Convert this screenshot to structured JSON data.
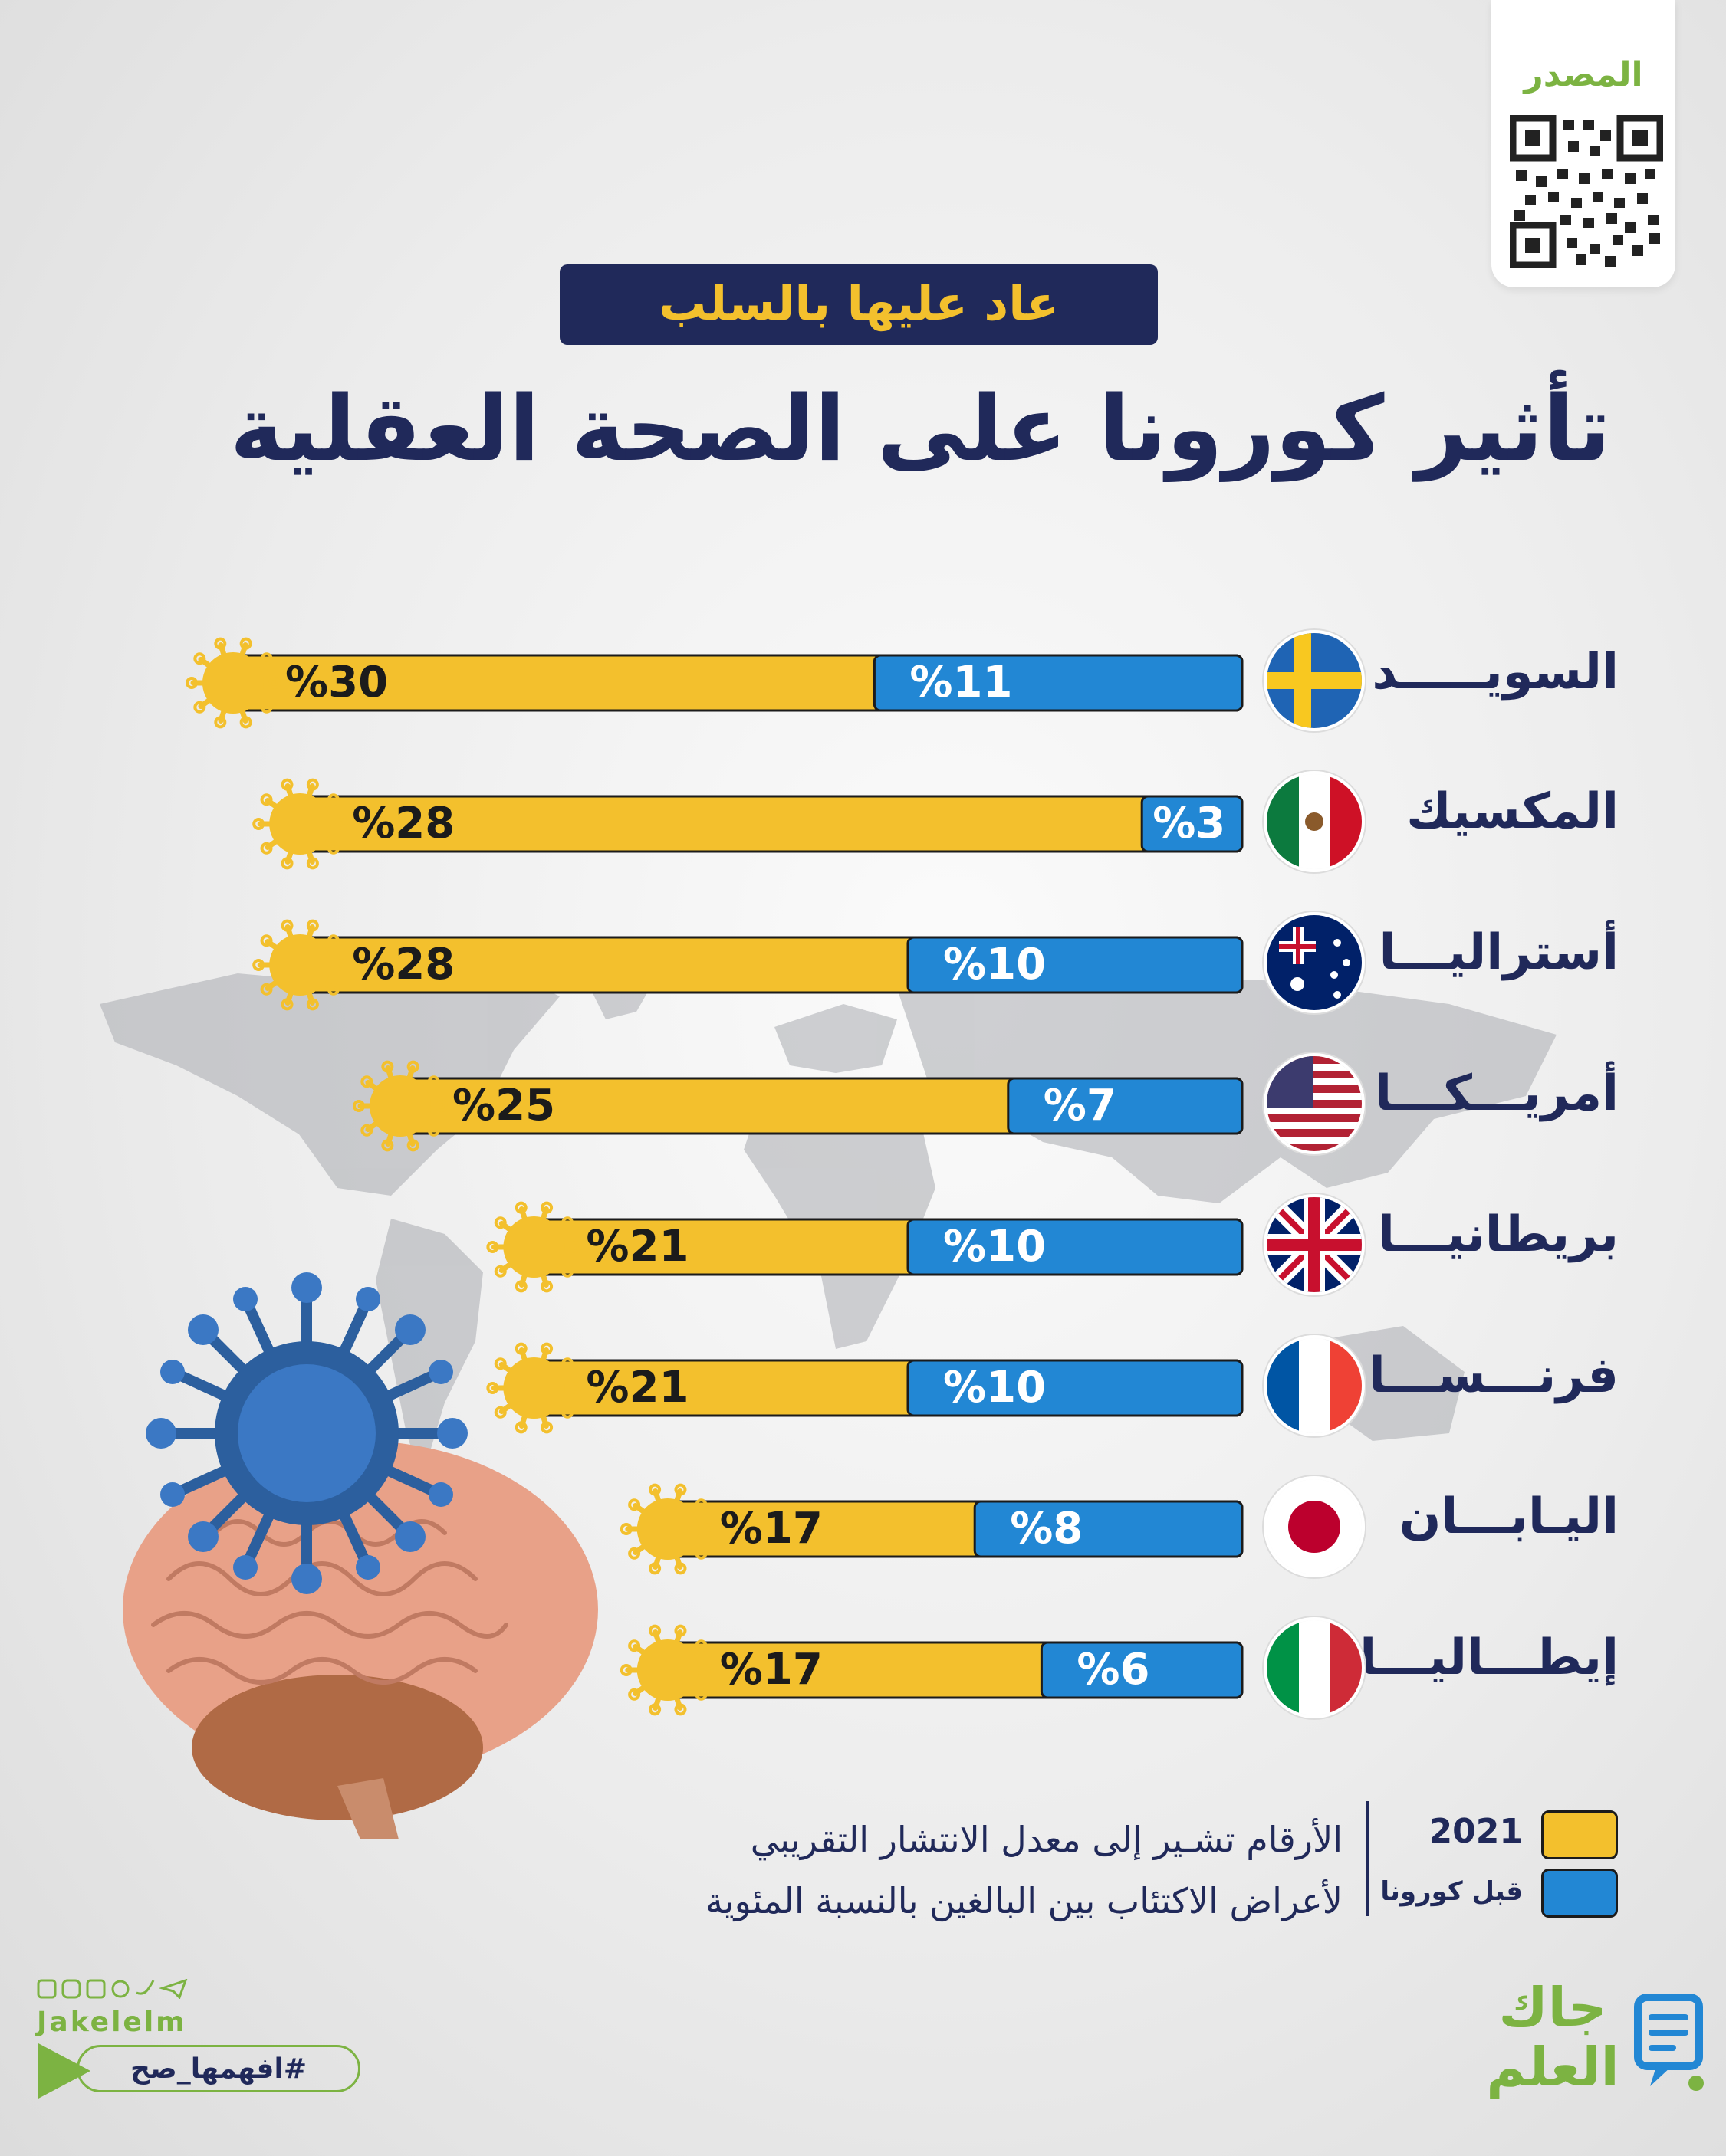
{
  "source": {
    "label": "المصدر"
  },
  "header": {
    "subtitle": "عاد عليها بالسلب",
    "title": "تأثير كورونا على الصحة العقلية"
  },
  "chart_data": {
    "type": "bar",
    "orientation": "horizontal",
    "categories": [
      "السويـــــد",
      "المكسيك",
      "أستراليـــا",
      "أمريـــكـــا",
      "بريطانيـــا",
      "فرنـــســـا",
      "اليـابـــان",
      "إيطـــاليـــا"
    ],
    "series": [
      {
        "name": "قبل كورونا",
        "color": "#2287d4",
        "values": [
          11,
          3,
          10,
          7,
          10,
          10,
          8,
          6
        ]
      },
      {
        "name": "2021",
        "color": "#f3c02d",
        "values": [
          30,
          28,
          28,
          25,
          21,
          21,
          17,
          17
        ]
      }
    ],
    "value_prefix": "%",
    "xlim": [
      0,
      30
    ],
    "grid": false,
    "legend_position": "bottom-right"
  },
  "flags": [
    "sweden-flag-icon",
    "mexico-flag-icon",
    "australia-flag-icon",
    "usa-flag-icon",
    "uk-flag-icon",
    "france-flag-icon",
    "japan-flag-icon",
    "italy-flag-icon"
  ],
  "legend": {
    "items": [
      {
        "label": "2021",
        "color": "#f3c02d"
      },
      {
        "label": "قبل كورونا",
        "color": "#2287d4"
      }
    ],
    "note_line1": "الأرقام تشـير إلى معدل الانتشار التقريبي",
    "note_line2": "لأعراض الاكتئاب بين البالغين بالنسبة المئوية"
  },
  "footer": {
    "handle": "Jakelelm",
    "hashtag": "#افهمها_صح",
    "logo_line1": "جاك",
    "logo_line2": "العلم",
    "social_icons": [
      "facebook-icon",
      "instagram-icon",
      "linkedin-icon",
      "snapchat-icon",
      "twitter-icon",
      "telegram-icon"
    ]
  },
  "colors": {
    "navy": "#20295a",
    "yellow": "#f3c02d",
    "blue": "#2287d4",
    "green": "#7cb342"
  }
}
